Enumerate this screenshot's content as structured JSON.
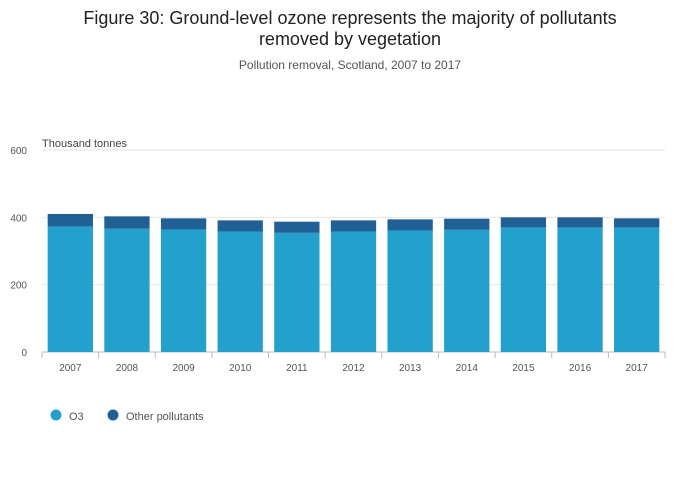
{
  "chart_data": {
    "type": "bar",
    "stacked": true,
    "title": "Figure 30: Ground-level ozone represents the majority of pollutants removed by vegetation",
    "title_lines": [
      "Figure 30: Ground-level ozone represents the majority of pollutants",
      "removed by vegetation"
    ],
    "subtitle": "Pollution removal, Scotland, 2007 to 2017",
    "ylabel": "Thousand tonnes",
    "xlabel": "",
    "ylim": [
      0,
      600
    ],
    "yticks": [
      0,
      200,
      400,
      600
    ],
    "categories": [
      "2007",
      "2008",
      "2009",
      "2010",
      "2011",
      "2012",
      "2013",
      "2014",
      "2015",
      "2016",
      "2017"
    ],
    "series": [
      {
        "name": "O3",
        "color": "#24a0cd",
        "values": [
          373,
          366,
          364,
          358,
          354,
          358,
          361,
          363,
          370,
          370,
          370
        ]
      },
      {
        "name": "Other pollutants",
        "color": "#206095",
        "values": [
          37,
          37,
          33,
          33,
          33,
          33,
          33,
          33,
          30,
          30,
          27
        ]
      }
    ],
    "legend_position": "bottom-left",
    "grid": true
  }
}
